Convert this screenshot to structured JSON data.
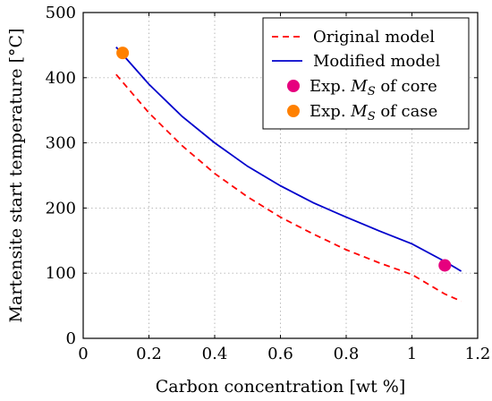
{
  "chart_data": {
    "type": "line",
    "xlabel": "Carbon concentration [wt %]",
    "ylabel": "Martensite start temperature [°C]",
    "xlim": [
      0,
      1.2
    ],
    "ylim": [
      0,
      500
    ],
    "xticks": [
      0,
      0.2,
      0.4,
      0.6,
      0.8,
      1,
      1.2
    ],
    "xtick_labels": [
      "0",
      "0.2",
      "0.4",
      "0.6",
      "0.8",
      "1",
      "1.2"
    ],
    "yticks": [
      0,
      100,
      200,
      300,
      400,
      500
    ],
    "ytick_labels": [
      "0",
      "100",
      "200",
      "300",
      "400",
      "500"
    ],
    "grid": true,
    "legend_position": "top-right",
    "series": [
      {
        "name": "Original model",
        "style": "dashed",
        "color": "#ff0000",
        "x": [
          0.1,
          0.2,
          0.3,
          0.4,
          0.5,
          0.6,
          0.7,
          0.8,
          0.9,
          1.0,
          1.1,
          1.15
        ],
        "y": [
          405,
          346,
          296,
          253,
          217,
          186,
          160,
          136,
          116,
          98,
          68,
          57
        ]
      },
      {
        "name": "Modified model",
        "style": "solid",
        "color": "#0000cc",
        "x": [
          0.1,
          0.2,
          0.3,
          0.4,
          0.5,
          0.6,
          0.7,
          0.8,
          0.9,
          1.0,
          1.1,
          1.15
        ],
        "y": [
          447,
          390,
          341,
          300,
          264,
          234,
          208,
          186,
          165,
          145,
          118,
          103
        ]
      }
    ],
    "points": [
      {
        "name": "Exp. M_S of core",
        "label_main": "Exp. ",
        "label_italic": "M",
        "label_sub": "S",
        "label_rest": " of core",
        "x": 1.1,
        "y": 112,
        "color": "#e6007e"
      },
      {
        "name": "Exp. M_S of case",
        "label_main": "Exp. ",
        "label_italic": "M",
        "label_sub": "S",
        "label_rest": " of case",
        "x": 0.12,
        "y": 438,
        "color": "#ff8000"
      }
    ]
  }
}
